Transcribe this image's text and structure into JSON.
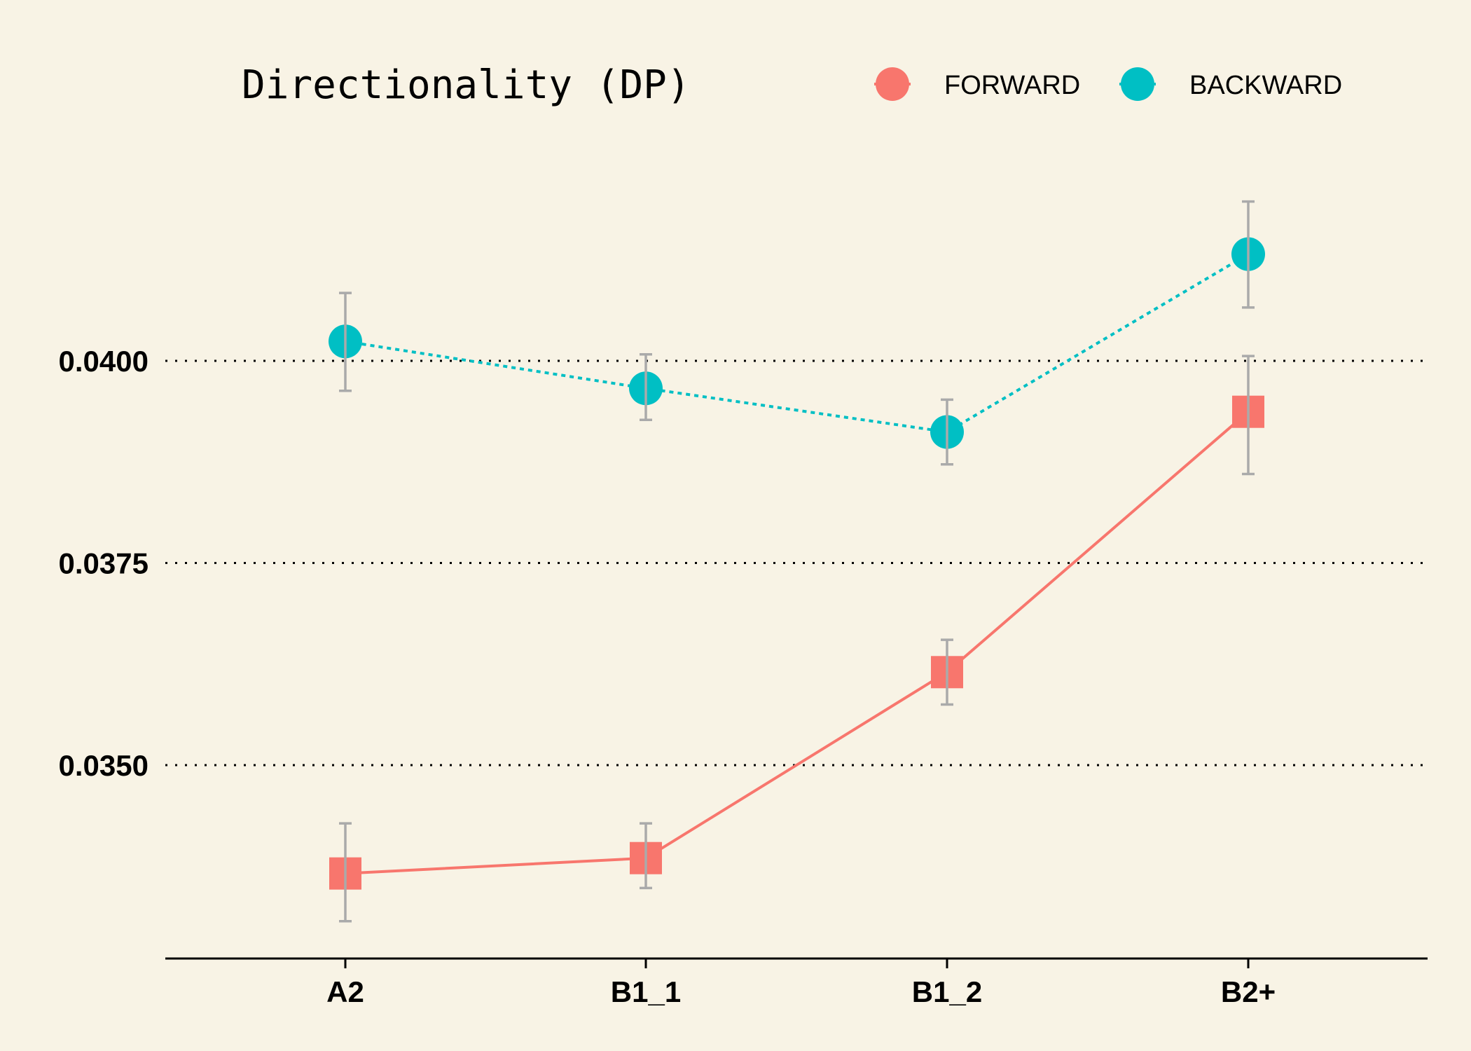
{
  "chart_data": {
    "type": "line",
    "title": "Directionality (DP)",
    "xlabel": "",
    "ylabel": "",
    "categories": [
      "A2",
      "B1_1",
      "B1_2",
      "B2+"
    ],
    "ylim": [
      0.03275,
      0.0428
    ],
    "yticks": [
      0.035,
      0.0375,
      0.04
    ],
    "ytick_labels": [
      "0.0350",
      "0.0375",
      "0.0400"
    ],
    "grid": "horizontal dotted",
    "legend": "top, beside title",
    "series": [
      {
        "name": "FORWARD",
        "color": "#f8766d",
        "marker": "square",
        "line": "solid",
        "values": [
          0.03366,
          0.03385,
          0.03615,
          0.03937
        ],
        "error_low": [
          0.03307,
          0.03348,
          0.03575,
          0.0386
        ],
        "error_high": [
          0.03428,
          0.03428,
          0.03655,
          0.04006
        ]
      },
      {
        "name": "BACKWARD",
        "color": "#00bfc4",
        "marker": "circle",
        "line": "dotted",
        "values": [
          0.04024,
          0.03966,
          0.03912,
          0.04132
        ],
        "error_low": [
          0.03963,
          0.03927,
          0.03872,
          0.04066
        ],
        "error_high": [
          0.04084,
          0.04008,
          0.03952,
          0.04197
        ]
      }
    ],
    "errorbar_color": "#aaaaaa"
  }
}
